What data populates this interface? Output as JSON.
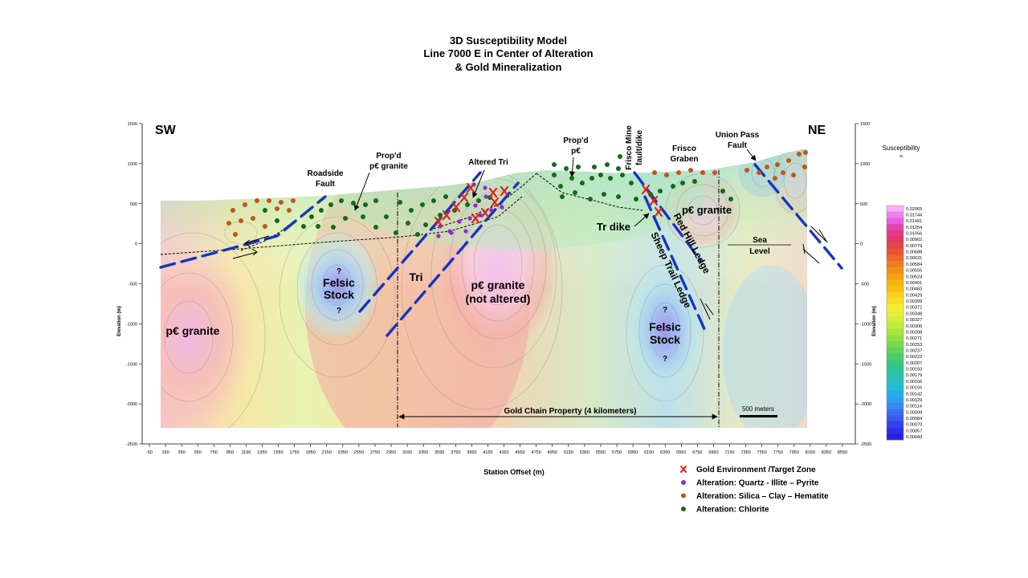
{
  "title": {
    "lines": [
      "3D Susceptibility Model",
      "Line 7000 E in Center of Alteration",
      "& Gold Mineralization"
    ]
  },
  "axes": {
    "x_label": "Station Offset (m)",
    "y_label": "Elevation (m)",
    "x_ticks": [
      "-50",
      "150",
      "350",
      "550",
      "750",
      "950",
      "1150",
      "1350",
      "1550",
      "1750",
      "1950",
      "2150",
      "2350",
      "2550",
      "2750",
      "2950",
      "3150",
      "3350",
      "3550",
      "3750",
      "3950",
      "4150",
      "4350",
      "4550",
      "4750",
      "4950",
      "5150",
      "5350",
      "5550",
      "5750",
      "5950",
      "6150",
      "6350",
      "6550",
      "6750",
      "6950",
      "7150",
      "7350",
      "7550",
      "7750",
      "7950",
      "8150",
      "8350",
      "8550"
    ],
    "y_ticks": [
      "1500",
      "1000",
      "500",
      "0",
      "-500",
      "-1000",
      "-1500",
      "-2000",
      "-2500"
    ]
  },
  "direction": {
    "left": "SW",
    "right": "NE"
  },
  "labels": {
    "roadside_fault": [
      "Roadside",
      "Fault"
    ],
    "propd_granite": [
      "Prop'd",
      "p€ granite"
    ],
    "altered_tri": "Altered Tri",
    "propd_pc": [
      "Prop'd",
      "p€"
    ],
    "frisco_mine": [
      "Frisco Mine",
      "fault/dike"
    ],
    "frisco_graben": [
      "Frisco",
      "Graben"
    ],
    "union_pass": [
      "Union Pass",
      "Fault"
    ],
    "felsic_stock_left": [
      "Felsic",
      "Stock"
    ],
    "felsic_stock_right": [
      "Felsic",
      "Stock"
    ],
    "question": "?",
    "granite_left": "p€ granite",
    "tri": "Tri",
    "granite_center": [
      "p€ granite",
      "(not altered)"
    ],
    "tr_dike": "Tr dike",
    "granite_right": "p€ granite",
    "red_hill_ledge": "Red Hill Ledge",
    "sheep_trail_ledge": "Sheep Trail Ledge",
    "sea_level": [
      "Sea",
      "Level"
    ],
    "gold_chain": "Gold Chain Property (4 kilometers)",
    "scale_bar": "500 meters"
  },
  "colorbar": {
    "title": "Susceptibility",
    "unit": "SI",
    "values": [
      "0.02065",
      "0.01744",
      "0.01491",
      "0.01254",
      "0.01056",
      "0.00902",
      "0.00779",
      "0.00688",
      "0.00631",
      "0.00584",
      "0.00555",
      "0.00524",
      "0.00491",
      "0.00460",
      "0.00429",
      "0.00399",
      "0.00372",
      "0.00348",
      "0.00327",
      "0.00306",
      "0.00288",
      "0.00271",
      "0.00253",
      "0.00237",
      "0.00222",
      "0.00207",
      "0.00193",
      "0.00179",
      "0.00166",
      "0.00155",
      "0.00142",
      "0.00129",
      "0.00114",
      "0.00099",
      "0.00084",
      "0.00070",
      "0.00057",
      "0.00043"
    ],
    "colors": [
      "#f7b0f4",
      "#ee80ec",
      "#e860d8",
      "#e444b4",
      "#e33a8e",
      "#e2386a",
      "#e44444",
      "#e95634",
      "#ec6a28",
      "#ef7d20",
      "#f28f18",
      "#f4a214",
      "#f5b212",
      "#f6c212",
      "#f8d218",
      "#f8e028",
      "#f4ec34",
      "#e6f03c",
      "#d4ee3c",
      "#c0ec3c",
      "#a8e63c",
      "#90e044",
      "#78da4c",
      "#60d458",
      "#48ce68",
      "#38c87c",
      "#2cc494",
      "#28c2ac",
      "#24c0c4",
      "#22bad6",
      "#20b0e6",
      "#2c9ef0",
      "#3888f2",
      "#3c6ef2",
      "#3c58f0",
      "#3442ec",
      "#2c30e6",
      "#2222de"
    ]
  },
  "legend": {
    "items": [
      {
        "label": "Gold Environment /Target Zone",
        "symbol": "x",
        "color": "#e02020"
      },
      {
        "label": "Alteration:  Quartz - Illite – Pyrite",
        "symbol": "dot",
        "color": "#8a28d8"
      },
      {
        "label": "Alteration:  Silica – Clay – Hematite",
        "symbol": "dot",
        "color": "#c0561c"
      },
      {
        "label": "Alteration:  Chlorite",
        "symbol": "dot",
        "color": "#136a18"
      }
    ]
  }
}
